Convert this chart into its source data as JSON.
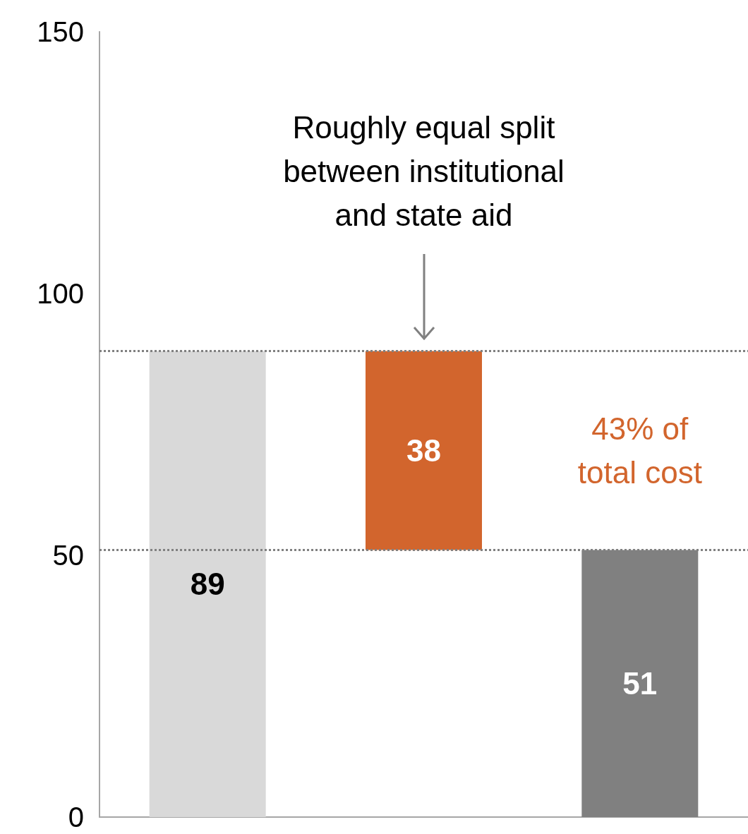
{
  "chart_data": {
    "type": "bar",
    "categories": [
      null,
      null,
      null
    ],
    "values": [
      89,
      38,
      51
    ],
    "base": [
      0,
      51,
      0
    ],
    "colors": [
      "#d9d9d9",
      "#d2652d",
      "#808080"
    ],
    "data_labels": true,
    "ylim": [
      0,
      150
    ],
    "yticks": [
      0,
      50,
      100,
      150
    ],
    "grid": false,
    "ref_lines": [
      {
        "axis": "y",
        "value": 89,
        "color": "#808080",
        "line_style": "dotted"
      },
      {
        "axis": "y",
        "value": 51,
        "color": "#808080",
        "line_style": "dotted"
      }
    ],
    "annotations": [
      "Roughly equal split between institutional and state aid",
      "43% of total cost"
    ]
  }
}
